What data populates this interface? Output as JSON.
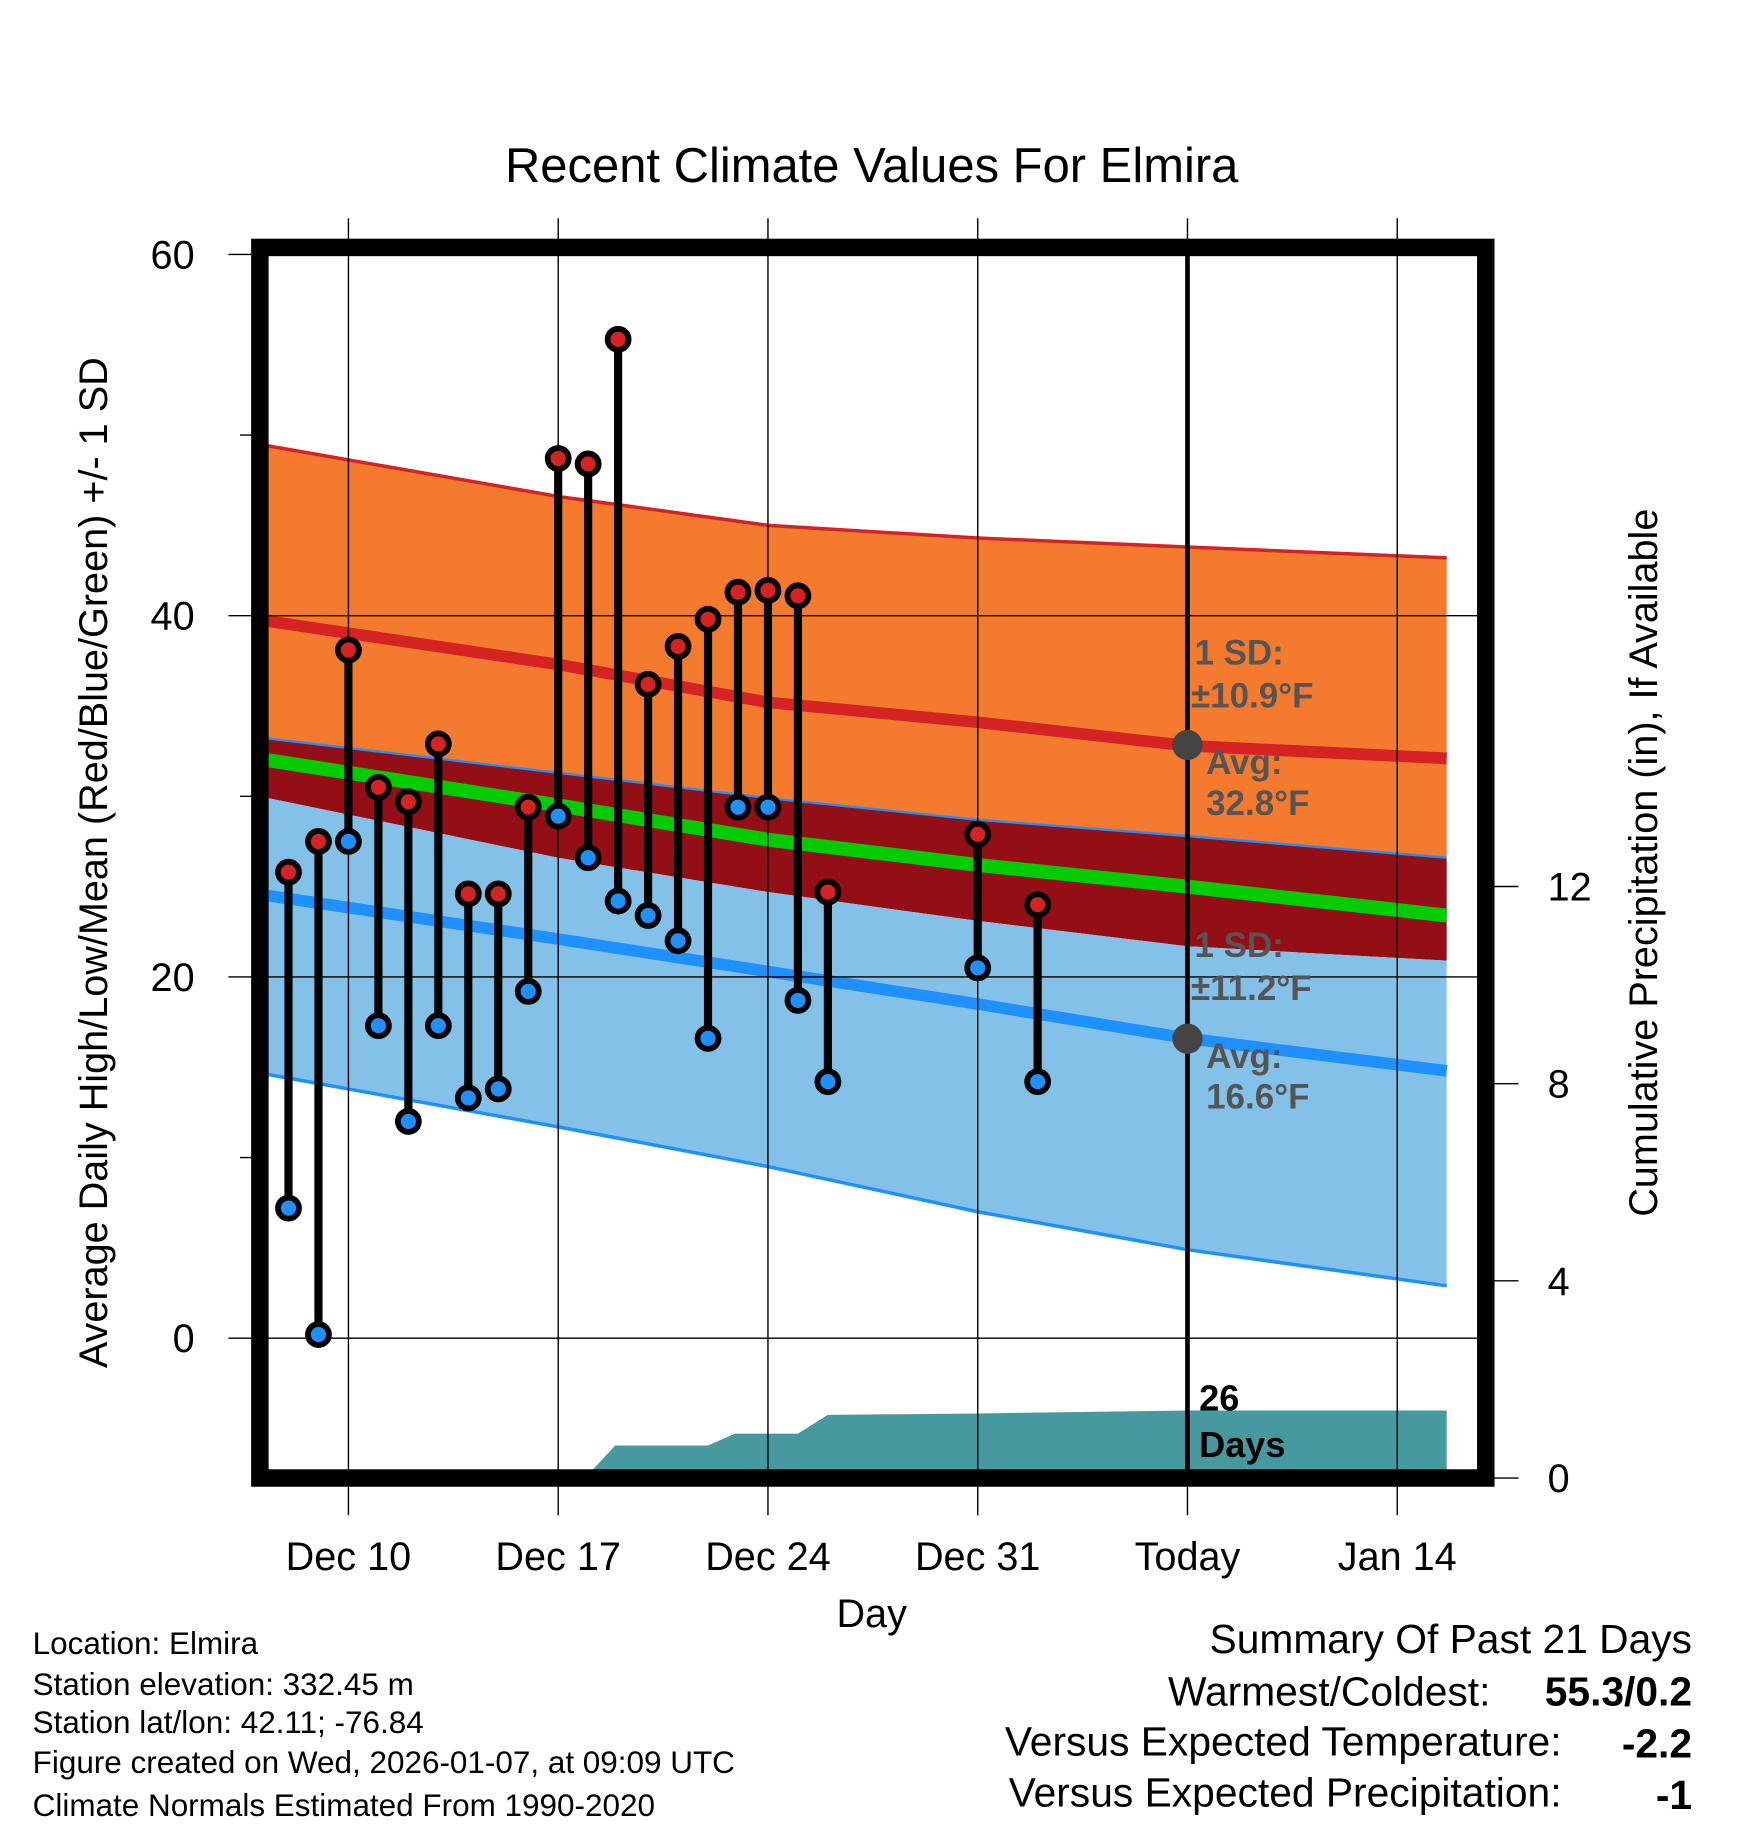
{
  "chart_data": {
    "type": "line",
    "title": "Recent Climate Values For Elmira",
    "xlabel": "Day",
    "ylabel": "Average Daily High/Low/Mean (Red/Blue/Green) +/- 1 SD",
    "y2label": "Cumulative Precipitation (in), If Available",
    "ylim": [
      -7.4,
      60
    ],
    "y2lim": [
      0,
      25
    ],
    "x_unit": "days relative to Dec 10",
    "xlim": [
      -2.68,
      36.65
    ],
    "x_ticks": [
      {
        "x": 0,
        "label": "Dec 10"
      },
      {
        "x": 7,
        "label": "Dec 17"
      },
      {
        "x": 14,
        "label": "Dec 24"
      },
      {
        "x": 21,
        "label": "Dec 31"
      },
      {
        "x": 28,
        "label": "Today"
      },
      {
        "x": 35,
        "label": "Jan 14"
      }
    ],
    "y_ticks": [
      0,
      20,
      40,
      60
    ],
    "y_minor_ticks": [
      10,
      30,
      50
    ],
    "y2_ticks": [
      0,
      4,
      8,
      12
    ],
    "grid": true,
    "today_x": 28,
    "observed": [
      {
        "x": -2,
        "high": 25.8,
        "low": 7.2
      },
      {
        "x": -1,
        "high": 27.5,
        "low": 0.2
      },
      {
        "x": 0,
        "high": 38.1,
        "low": 27.5
      },
      {
        "x": 1,
        "high": 30.5,
        "low": 17.3
      },
      {
        "x": 2,
        "high": 29.7,
        "low": 12.0
      },
      {
        "x": 3,
        "high": 32.9,
        "low": 17.3
      },
      {
        "x": 4,
        "high": 24.6,
        "low": 13.3
      },
      {
        "x": 5,
        "high": 24.6,
        "low": 13.8
      },
      {
        "x": 6,
        "high": 29.4,
        "low": 19.2
      },
      {
        "x": 7,
        "high": 48.7,
        "low": 28.9
      },
      {
        "x": 8,
        "high": 48.4,
        "low": 26.6
      },
      {
        "x": 9,
        "high": 55.3,
        "low": 24.2
      },
      {
        "x": 10,
        "high": 36.2,
        "low": 23.4
      },
      {
        "x": 11,
        "high": 38.3,
        "low": 22.0
      },
      {
        "x": 12,
        "high": 39.8,
        "low": 16.6
      },
      {
        "x": 13,
        "high": 41.3,
        "low": 29.4
      },
      {
        "x": 14,
        "high": 41.4,
        "low": 29.4
      },
      {
        "x": 15,
        "high": 41.1,
        "low": 18.7
      },
      {
        "x": 16,
        "high": 24.7,
        "low": 14.2
      },
      {
        "x": 21,
        "high": 27.9,
        "low": 20.5
      },
      {
        "x": 23,
        "high": 24.0,
        "low": 14.2
      }
    ],
    "normals": {
      "x": [
        -2.68,
        7,
        14,
        21,
        28,
        36.65
      ],
      "high_plus_sd": [
        49.4,
        46.6,
        45.0,
        44.3,
        43.8,
        43.2
      ],
      "high_avg": [
        39.7,
        37.3,
        35.2,
        34.1,
        32.8,
        32.1
      ],
      "high_minus_sd": [
        33.2,
        31.3,
        29.9,
        28.7,
        27.8,
        26.6
      ],
      "mean": [
        32.0,
        29.5,
        27.6,
        26.2,
        25.0,
        23.4
      ],
      "low_plus_sd": [
        29.9,
        26.6,
        24.7,
        23.1,
        21.7,
        20.9
      ],
      "low_avg": [
        24.5,
        22.1,
        20.3,
        18.5,
        16.6,
        14.8
      ],
      "low_minus_sd": [
        14.6,
        11.7,
        9.5,
        7.0,
        4.9,
        2.9
      ]
    },
    "precip_cumulative": {
      "x": [
        7.9,
        8.9,
        12,
        12.9,
        15,
        16,
        21,
        28,
        36.65
      ],
      "values": [
        0,
        0.66,
        0.66,
        0.9,
        0.9,
        1.28,
        1.31,
        1.37,
        1.37
      ]
    },
    "annotations": {
      "high_sd_label": "1 SD:",
      "high_sd_value": "±10.9°F",
      "high_avg_label": "Avg:",
      "high_avg_value": "32.8°F",
      "low_sd_label": "1 SD:",
      "low_sd_value": "±11.2°F",
      "low_avg_label": "Avg:",
      "low_avg_value": "16.6°F",
      "days_count": "26",
      "days_label": "Days"
    },
    "colors": {
      "high_band": "#F47A2E",
      "high_line": "#D52222",
      "mid_band": "#940E15",
      "mean_line": "#00CC00",
      "low_line": "#1E90FF",
      "low_band": "#83C1E8",
      "precip": "#45999F",
      "high_dot": "#D52222",
      "low_dot": "#1E90FF"
    }
  },
  "info": {
    "location": "Location: Elmira",
    "elevation": "Station elevation: 332.45 m",
    "latlon": "Station lat/lon: 42.11; -76.84",
    "created": "Figure created on Wed, 2026-01-07, at 09:09 UTC",
    "normals": "Climate Normals Estimated From 1990-2020"
  },
  "summary": {
    "title": "Summary Of Past 21 Days",
    "warmest_label": "Warmest/Coldest:",
    "warmest_value": "55.3/0.2",
    "temp_label": "Versus Expected Temperature:",
    "temp_value": "-2.2",
    "precip_label": "Versus Expected Precipitation:",
    "precip_value": "-1",
    "temp_color": "#1E90FF",
    "precip_color": "#A0522D"
  }
}
